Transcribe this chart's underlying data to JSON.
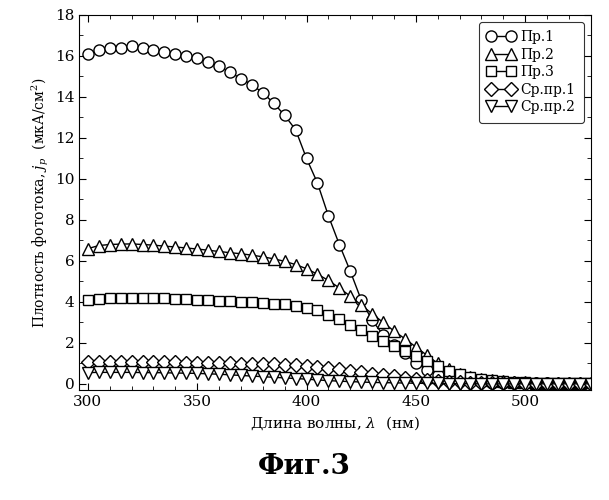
{
  "title": "Фиг.3",
  "xlabel": "Длина волны, λ  (нм)",
  "ylabel": "Плотность фототока, j_p  (мкА/см²)",
  "xlim": [
    296,
    530
  ],
  "ylim": [
    -0.3,
    18
  ],
  "yticks": [
    0,
    2,
    4,
    6,
    8,
    10,
    12,
    14,
    16,
    18
  ],
  "xticks": [
    300,
    350,
    400,
    450,
    500
  ],
  "background_color": "#ffffff",
  "series": [
    {
      "label": "Пр.1",
      "marker": "o",
      "x": [
        300,
        305,
        310,
        315,
        320,
        325,
        330,
        335,
        340,
        345,
        350,
        355,
        360,
        365,
        370,
        375,
        380,
        385,
        390,
        395,
        400,
        405,
        410,
        415,
        420,
        425,
        430,
        435,
        440,
        445,
        450,
        455,
        460,
        465,
        470,
        475,
        480,
        485,
        490,
        495,
        500,
        505,
        510,
        515,
        520,
        525,
        530
      ],
      "y": [
        16.1,
        16.3,
        16.4,
        16.4,
        16.5,
        16.4,
        16.3,
        16.2,
        16.1,
        16.0,
        15.9,
        15.7,
        15.5,
        15.2,
        14.9,
        14.6,
        14.2,
        13.7,
        13.1,
        12.4,
        11.0,
        9.8,
        8.2,
        6.8,
        5.5,
        4.1,
        3.1,
        2.4,
        1.9,
        1.5,
        1.0,
        0.7,
        0.45,
        0.3,
        0.18,
        0.12,
        0.08,
        0.06,
        0.05,
        0.04,
        0.03,
        0.02,
        0.02,
        0.01,
        0.01,
        0.01,
        0.01
      ]
    },
    {
      "label": "Пр.2",
      "marker": "^",
      "x": [
        300,
        305,
        310,
        315,
        320,
        325,
        330,
        335,
        340,
        345,
        350,
        355,
        360,
        365,
        370,
        375,
        380,
        385,
        390,
        395,
        400,
        405,
        410,
        415,
        420,
        425,
        430,
        435,
        440,
        445,
        450,
        455,
        460,
        465,
        470,
        475,
        480,
        485,
        490,
        495,
        500,
        505,
        510,
        515,
        520,
        525,
        530
      ],
      "y": [
        6.6,
        6.75,
        6.8,
        6.82,
        6.83,
        6.8,
        6.77,
        6.72,
        6.68,
        6.63,
        6.58,
        6.52,
        6.46,
        6.4,
        6.35,
        6.28,
        6.2,
        6.1,
        5.98,
        5.82,
        5.62,
        5.35,
        5.05,
        4.68,
        4.28,
        3.85,
        3.42,
        3.0,
        2.58,
        2.2,
        1.8,
        1.4,
        1.0,
        0.72,
        0.5,
        0.35,
        0.24,
        0.17,
        0.12,
        0.09,
        0.07,
        0.05,
        0.04,
        0.03,
        0.02,
        0.02,
        0.01
      ]
    },
    {
      "label": "Пр.3",
      "marker": "s",
      "x": [
        300,
        305,
        310,
        315,
        320,
        325,
        330,
        335,
        340,
        345,
        350,
        355,
        360,
        365,
        370,
        375,
        380,
        385,
        390,
        395,
        400,
        405,
        410,
        415,
        420,
        425,
        430,
        435,
        440,
        445,
        450,
        455,
        460,
        465,
        470,
        475,
        480,
        485,
        490,
        495,
        500,
        505,
        510,
        515,
        520,
        525,
        530
      ],
      "y": [
        4.1,
        4.15,
        4.18,
        4.2,
        4.21,
        4.2,
        4.18,
        4.17,
        4.15,
        4.13,
        4.1,
        4.08,
        4.05,
        4.03,
        4.0,
        3.98,
        3.95,
        3.92,
        3.88,
        3.82,
        3.72,
        3.58,
        3.38,
        3.15,
        2.88,
        2.62,
        2.35,
        2.1,
        1.85,
        1.6,
        1.35,
        1.1,
        0.85,
        0.65,
        0.48,
        0.34,
        0.23,
        0.17,
        0.12,
        0.09,
        0.07,
        0.06,
        0.05,
        0.04,
        0.03,
        0.02,
        0.02
      ]
    },
    {
      "label": "Ср.пр.1",
      "marker": "D",
      "x": [
        300,
        305,
        310,
        315,
        320,
        325,
        330,
        335,
        340,
        345,
        350,
        355,
        360,
        365,
        370,
        375,
        380,
        385,
        390,
        395,
        400,
        405,
        410,
        415,
        420,
        425,
        430,
        435,
        440,
        445,
        450,
        455,
        460,
        465,
        470,
        475,
        480,
        485,
        490,
        495,
        500,
        505,
        510,
        515,
        520,
        525,
        530
      ],
      "y": [
        1.05,
        1.05,
        1.05,
        1.05,
        1.05,
        1.05,
        1.05,
        1.05,
        1.05,
        1.04,
        1.03,
        1.02,
        1.01,
        1.0,
        0.99,
        0.98,
        0.97,
        0.95,
        0.93,
        0.91,
        0.87,
        0.83,
        0.78,
        0.72,
        0.65,
        0.58,
        0.5,
        0.43,
        0.36,
        0.29,
        0.23,
        0.18,
        0.14,
        0.1,
        0.07,
        0.05,
        0.04,
        0.03,
        0.02,
        0.02,
        0.01,
        0.01,
        0.01,
        0.01,
        0.01,
        0.01,
        0.01
      ]
    },
    {
      "label": "Ср.пр.2",
      "marker": "v",
      "x": [
        300,
        305,
        310,
        315,
        320,
        325,
        330,
        335,
        340,
        345,
        350,
        355,
        360,
        365,
        370,
        375,
        380,
        385,
        390,
        395,
        400,
        405,
        410,
        415,
        420,
        425,
        430,
        435,
        440,
        445,
        450,
        455,
        460,
        465,
        470,
        475,
        480,
        485,
        490,
        495,
        500,
        505,
        510,
        515,
        520,
        525,
        530
      ],
      "y": [
        0.55,
        0.56,
        0.56,
        0.56,
        0.56,
        0.55,
        0.55,
        0.54,
        0.53,
        0.52,
        0.51,
        0.49,
        0.47,
        0.44,
        0.41,
        0.38,
        0.35,
        0.32,
        0.29,
        0.26,
        0.23,
        0.19,
        0.16,
        0.13,
        0.11,
        0.09,
        0.07,
        0.06,
        0.05,
        0.04,
        0.03,
        0.02,
        0.02,
        0.01,
        0.01,
        0.01,
        0.0,
        0.0,
        0.0,
        0.0,
        0.0,
        0.0,
        0.0,
        0.0,
        0.0,
        0.0,
        0.0
      ]
    }
  ]
}
